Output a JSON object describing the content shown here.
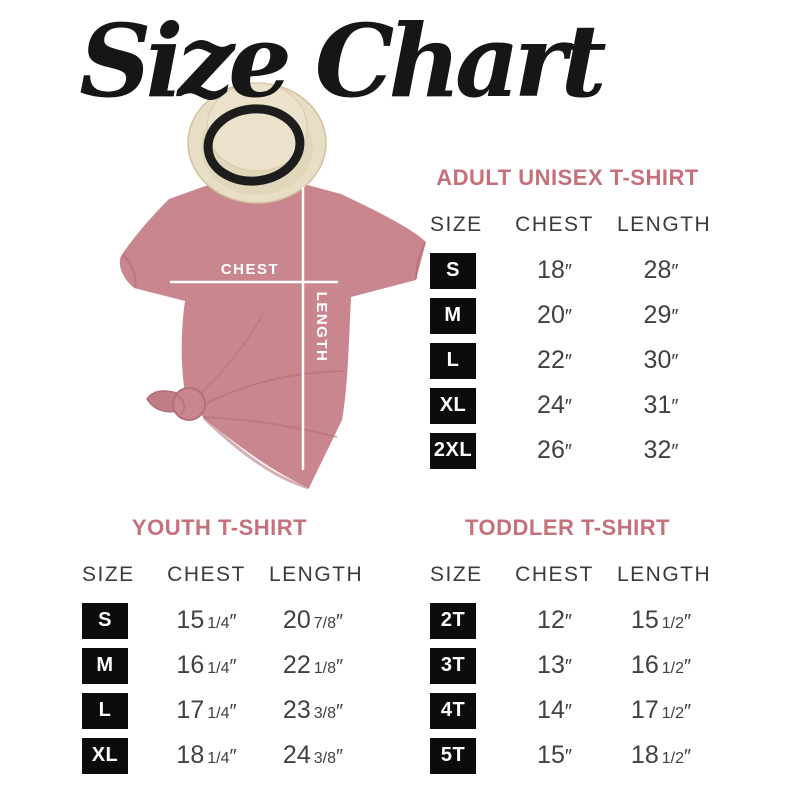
{
  "page": {
    "title": "Size Chart"
  },
  "diagram": {
    "chest_label": "CHEST",
    "length_label": "LENGTH"
  },
  "tables": [
    {
      "id": "adult",
      "heading": "ADULT UNISEX T-SHIRT",
      "columns": [
        "SIZE",
        "CHEST",
        "LENGTH"
      ],
      "rows": [
        {
          "size": "S",
          "chest": {
            "whole": "18",
            "frac": "",
            "unit": "″"
          },
          "length": {
            "whole": "28",
            "frac": "",
            "unit": "″"
          }
        },
        {
          "size": "M",
          "chest": {
            "whole": "20",
            "frac": "",
            "unit": "″"
          },
          "length": {
            "whole": "29",
            "frac": "",
            "unit": "″"
          }
        },
        {
          "size": "L",
          "chest": {
            "whole": "22",
            "frac": "",
            "unit": "″"
          },
          "length": {
            "whole": "30",
            "frac": "",
            "unit": "″"
          }
        },
        {
          "size": "XL",
          "chest": {
            "whole": "24",
            "frac": "",
            "unit": "″"
          },
          "length": {
            "whole": "31",
            "frac": "",
            "unit": "″"
          }
        },
        {
          "size": "2XL",
          "chest": {
            "whole": "26",
            "frac": "",
            "unit": "″"
          },
          "length": {
            "whole": "32",
            "frac": "",
            "unit": "″"
          }
        }
      ]
    },
    {
      "id": "youth",
      "heading": "YOUTH T-SHIRT",
      "columns": [
        "SIZE",
        "CHEST",
        "LENGTH"
      ],
      "rows": [
        {
          "size": "S",
          "chest": {
            "whole": "15",
            "frac": "1/4",
            "unit": "″"
          },
          "length": {
            "whole": "20",
            "frac": "7/8",
            "unit": "″"
          }
        },
        {
          "size": "M",
          "chest": {
            "whole": "16",
            "frac": "1/4",
            "unit": "″"
          },
          "length": {
            "whole": "22",
            "frac": "1/8",
            "unit": "″"
          }
        },
        {
          "size": "L",
          "chest": {
            "whole": "17",
            "frac": "1/4",
            "unit": "″"
          },
          "length": {
            "whole": "23",
            "frac": "3/8",
            "unit": "″"
          }
        },
        {
          "size": "XL",
          "chest": {
            "whole": "18",
            "frac": "1/4",
            "unit": "″"
          },
          "length": {
            "whole": "24",
            "frac": "3/8",
            "unit": "″"
          }
        }
      ]
    },
    {
      "id": "toddler",
      "heading": "TODDLER T-SHIRT",
      "columns": [
        "SIZE",
        "CHEST",
        "LENGTH"
      ],
      "rows": [
        {
          "size": "2T",
          "chest": {
            "whole": "12",
            "frac": "",
            "unit": "″"
          },
          "length": {
            "whole": "15",
            "frac": "1/2",
            "unit": "″"
          }
        },
        {
          "size": "3T",
          "chest": {
            "whole": "13",
            "frac": "",
            "unit": "″"
          },
          "length": {
            "whole": "16",
            "frac": "1/2",
            "unit": "″"
          }
        },
        {
          "size": "4T",
          "chest": {
            "whole": "14",
            "frac": "",
            "unit": "″"
          },
          "length": {
            "whole": "17",
            "frac": "1/2",
            "unit": "″"
          }
        },
        {
          "size": "5T",
          "chest": {
            "whole": "15",
            "frac": "",
            "unit": "″"
          },
          "length": {
            "whole": "18",
            "frac": "1/2",
            "unit": "″"
          }
        }
      ]
    }
  ],
  "colors": {
    "accent_pink": "#c4717b",
    "shirt_mauve": "#ca868e",
    "shirt_shadow": "#b2707a",
    "hat_straw": "#e8ddc5",
    "hat_band": "#1d1d1d",
    "badge_bg": "#0c0c0c",
    "table_text": "#414141",
    "measure_line": "#ffffff",
    "background": "#ffffff"
  }
}
